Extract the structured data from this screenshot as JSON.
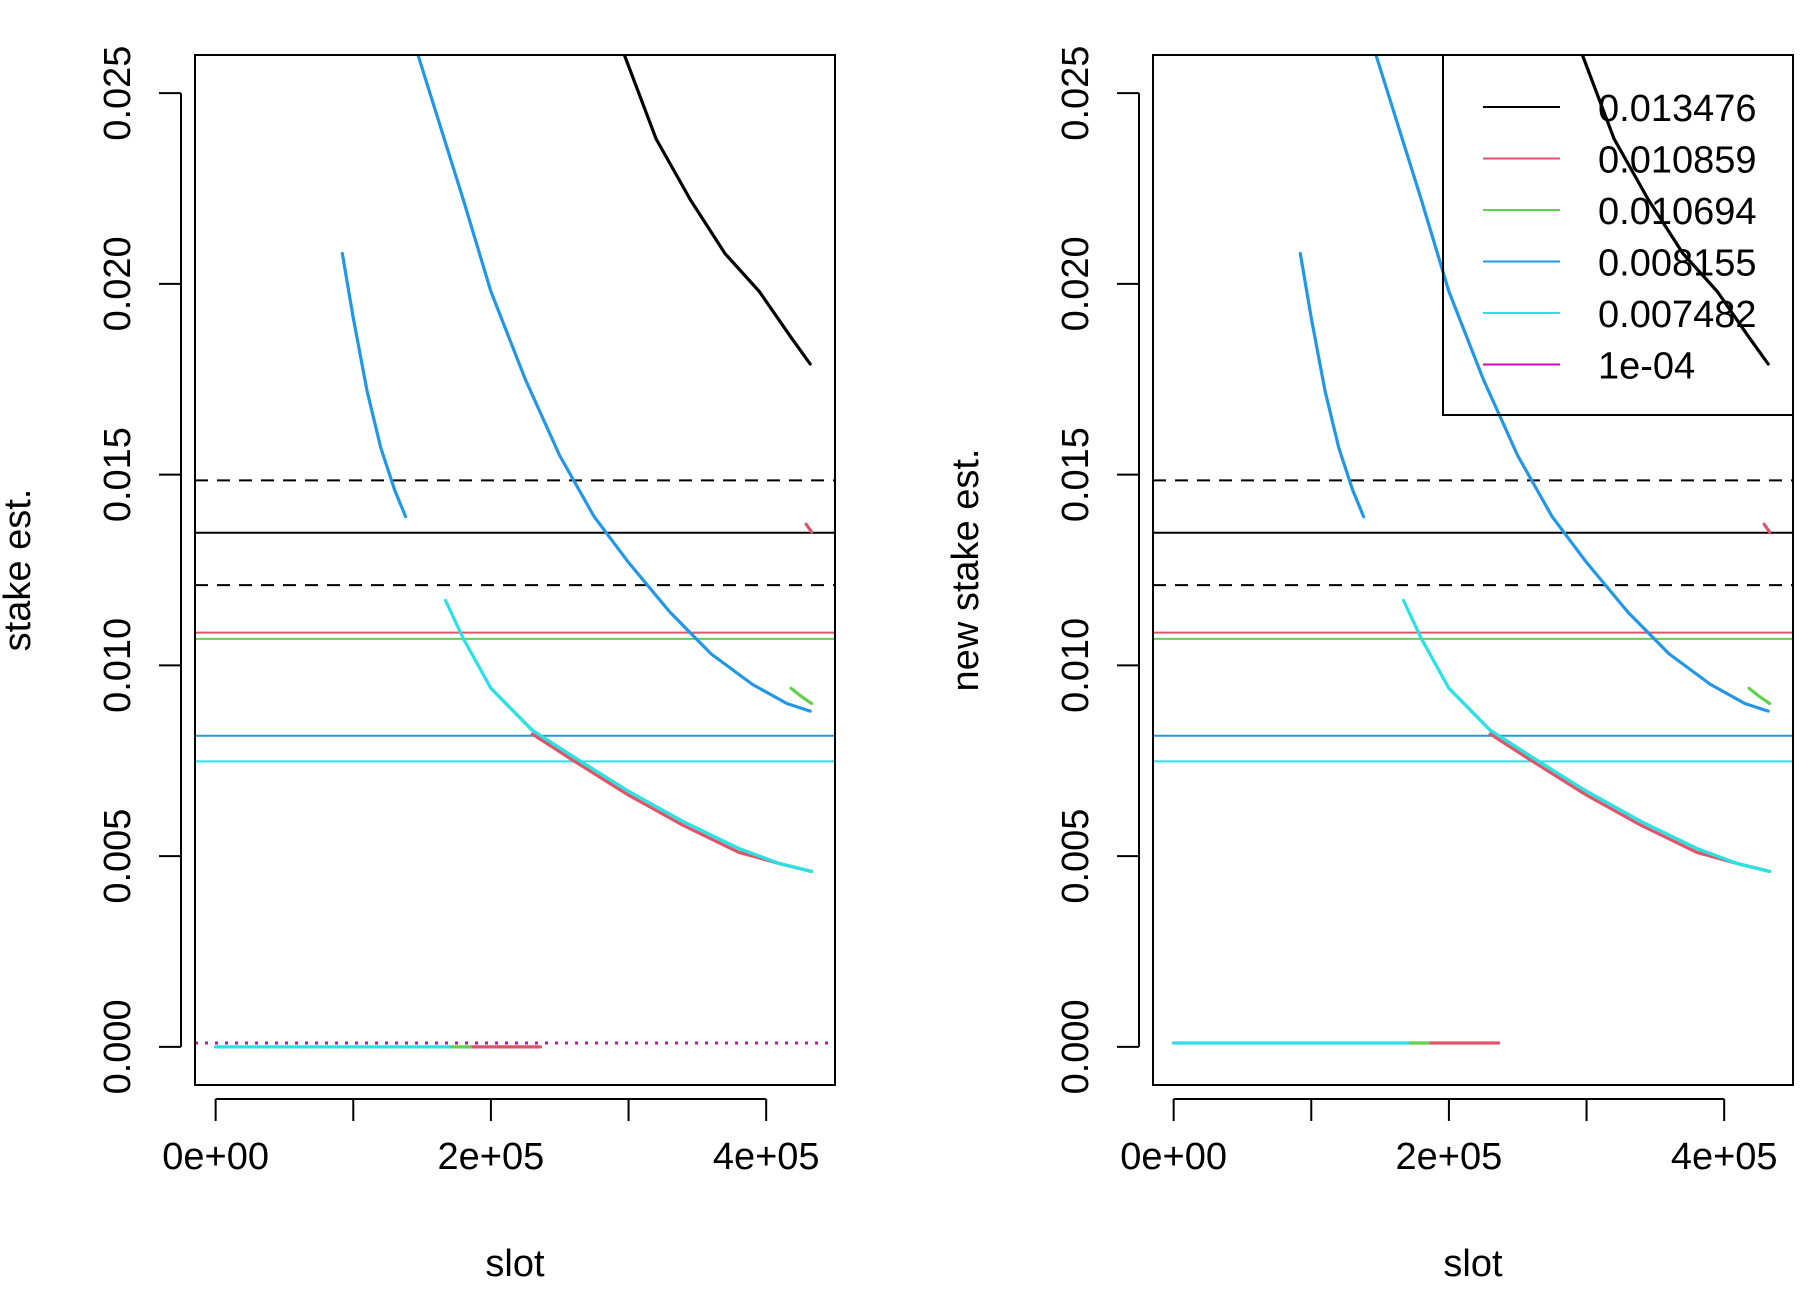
{
  "colors": {
    "black": "#000000",
    "red": "#df536b",
    "green": "#61d04f",
    "blue": "#2297e6",
    "cyan": "#28e2e5",
    "magenta": "#cd0bbc"
  },
  "chart_data": [
    {
      "type": "line",
      "xlabel": "slot",
      "ylabel": "stake est.",
      "xlim": [
        -15000,
        450000
      ],
      "ylim": [
        -0.001,
        0.026
      ],
      "xticks": [
        0,
        100000,
        200000,
        300000,
        400000
      ],
      "xtick_labels": [
        "0e+00",
        "",
        "2e+05",
        "",
        "4e+05"
      ],
      "yticks": [
        0,
        0.005,
        0.01,
        0.015,
        0.02,
        0.025
      ],
      "ytick_labels": [
        "0.000",
        "0.005",
        "0.010",
        "0.015",
        "0.020",
        "0.025"
      ],
      "grid": false,
      "hlines": [
        {
          "y": 0.014849,
          "color": "#000000",
          "dash": "dashed"
        },
        {
          "y": 0.013476,
          "color": "#000000",
          "dash": "solid"
        },
        {
          "y": 0.012103,
          "color": "#000000",
          "dash": "dashed"
        },
        {
          "y": 0.010859,
          "color": "#df536b",
          "dash": "solid"
        },
        {
          "y": 0.010694,
          "color": "#61d04f",
          "dash": "solid"
        },
        {
          "y": 0.008155,
          "color": "#2297e6",
          "dash": "solid"
        },
        {
          "y": 0.007482,
          "color": "#28e2e5",
          "dash": "solid"
        },
        {
          "y": 0.0001,
          "color": "#cd0bbc",
          "dash": "dotted"
        }
      ],
      "series": [
        {
          "color": "#000000",
          "x": [
            297000,
            320000,
            345000,
            370000,
            395000,
            418000,
            432000
          ],
          "y": [
            0.026,
            0.0238,
            0.0222,
            0.0208,
            0.0198,
            0.0186,
            0.0179
          ]
        },
        {
          "color": "#2297e6",
          "x": [
            147000,
            160000,
            180000,
            200000,
            225000,
            250000,
            275000,
            300000,
            330000,
            360000,
            390000,
            415000,
            432000
          ],
          "y": [
            0.026,
            0.0245,
            0.0222,
            0.0198,
            0.0175,
            0.0155,
            0.0139,
            0.0127,
            0.0114,
            0.0103,
            0.0095,
            0.009,
            0.0088
          ]
        },
        {
          "color": "#2297e6",
          "x": [
            92000,
            100000,
            110000,
            120000,
            130000,
            138000
          ],
          "y": [
            0.0208,
            0.0191,
            0.0172,
            0.0157,
            0.0146,
            0.0139
          ]
        },
        {
          "color": "#61d04f",
          "x": [
            418000,
            425000,
            433000
          ],
          "y": [
            0.0094,
            0.0092,
            0.009
          ]
        },
        {
          "color": "#df536b",
          "x": [
            429000,
            433000
          ],
          "y": [
            0.0137,
            0.0135
          ]
        },
        {
          "color": "#df536b",
          "x": [
            230000,
            260000,
            300000,
            340000,
            380000,
            410000,
            433000
          ],
          "y": [
            0.0082,
            0.0075,
            0.0066,
            0.0058,
            0.0051,
            0.0048,
            0.0046
          ]
        },
        {
          "color": "#61d04f",
          "x": [
            200000,
            230000,
            260000,
            300000,
            340000,
            380000,
            410000,
            433000
          ],
          "y": [
            0.0094,
            0.0083,
            0.0076,
            0.0067,
            0.0059,
            0.0052,
            0.0048,
            0.0046
          ]
        },
        {
          "color": "#28e2e5",
          "x": [
            167000,
            180000,
            200000,
            230000,
            260000,
            300000,
            340000,
            380000,
            410000,
            433000
          ],
          "y": [
            0.0117,
            0.0107,
            0.0094,
            0.0083,
            0.0076,
            0.0067,
            0.0059,
            0.0052,
            0.0048,
            0.0046
          ]
        },
        {
          "color": "#df536b",
          "x": [
            185000,
            236000
          ],
          "y": [
            0.0,
            0.0
          ]
        },
        {
          "color": "#61d04f",
          "x": [
            170000,
            185000
          ],
          "y": [
            0.0,
            0.0
          ]
        },
        {
          "color": "#28e2e5",
          "x": [
            0,
            170000
          ],
          "y": [
            0.0,
            0.0
          ]
        }
      ]
    },
    {
      "type": "line",
      "xlabel": "slot",
      "ylabel": "new stake est.",
      "xlim": [
        -15000,
        450000
      ],
      "ylim": [
        -0.001,
        0.026
      ],
      "xticks": [
        0,
        100000,
        200000,
        300000,
        400000
      ],
      "xtick_labels": [
        "0e+00",
        "",
        "2e+05",
        "",
        "4e+05"
      ],
      "yticks": [
        0,
        0.005,
        0.01,
        0.015,
        0.02,
        0.025
      ],
      "ytick_labels": [
        "0.000",
        "0.005",
        "0.010",
        "0.015",
        "0.020",
        "0.025"
      ],
      "grid": false,
      "legend": {
        "position": "top-right",
        "entries": [
          {
            "label": "0.013476",
            "color": "#000000"
          },
          {
            "label": "0.010859",
            "color": "#df536b"
          },
          {
            "label": "0.010694",
            "color": "#61d04f"
          },
          {
            "label": "0.008155",
            "color": "#2297e6"
          },
          {
            "label": "0.007482",
            "color": "#28e2e5"
          },
          {
            "label": "1e-04",
            "color": "#cd0bbc"
          }
        ]
      },
      "hlines": [
        {
          "y": 0.014849,
          "color": "#000000",
          "dash": "dashed"
        },
        {
          "y": 0.013476,
          "color": "#000000",
          "dash": "solid"
        },
        {
          "y": 0.012103,
          "color": "#000000",
          "dash": "dashed"
        },
        {
          "y": 0.010859,
          "color": "#df536b",
          "dash": "solid"
        },
        {
          "y": 0.010694,
          "color": "#61d04f",
          "dash": "solid"
        },
        {
          "y": 0.008155,
          "color": "#2297e6",
          "dash": "solid"
        },
        {
          "y": 0.007482,
          "color": "#28e2e5",
          "dash": "solid"
        }
      ],
      "series": [
        {
          "color": "#000000",
          "x": [
            297000,
            320000,
            345000,
            370000,
            395000,
            418000,
            432000
          ],
          "y": [
            0.026,
            0.0238,
            0.0222,
            0.0208,
            0.0198,
            0.0186,
            0.0179
          ]
        },
        {
          "color": "#2297e6",
          "x": [
            147000,
            160000,
            180000,
            200000,
            225000,
            250000,
            275000,
            300000,
            330000,
            360000,
            390000,
            415000,
            432000
          ],
          "y": [
            0.026,
            0.0245,
            0.0222,
            0.0198,
            0.0175,
            0.0155,
            0.0139,
            0.0127,
            0.0114,
            0.0103,
            0.0095,
            0.009,
            0.0088
          ]
        },
        {
          "color": "#2297e6",
          "x": [
            92000,
            100000,
            110000,
            120000,
            130000,
            138000
          ],
          "y": [
            0.0208,
            0.0191,
            0.0172,
            0.0157,
            0.0146,
            0.0139
          ]
        },
        {
          "color": "#61d04f",
          "x": [
            418000,
            425000,
            433000
          ],
          "y": [
            0.0094,
            0.0092,
            0.009
          ]
        },
        {
          "color": "#df536b",
          "x": [
            429000,
            433000
          ],
          "y": [
            0.0137,
            0.0135
          ]
        },
        {
          "color": "#df536b",
          "x": [
            230000,
            260000,
            300000,
            340000,
            380000,
            410000,
            433000
          ],
          "y": [
            0.0082,
            0.0075,
            0.0066,
            0.0058,
            0.0051,
            0.0048,
            0.0046
          ]
        },
        {
          "color": "#61d04f",
          "x": [
            200000,
            230000,
            260000,
            300000,
            340000,
            380000,
            410000,
            433000
          ],
          "y": [
            0.0094,
            0.0083,
            0.0076,
            0.0067,
            0.0059,
            0.0052,
            0.0048,
            0.0046
          ]
        },
        {
          "color": "#28e2e5",
          "x": [
            167000,
            180000,
            200000,
            230000,
            260000,
            300000,
            340000,
            380000,
            410000,
            433000
          ],
          "y": [
            0.0117,
            0.0107,
            0.0094,
            0.0083,
            0.0076,
            0.0067,
            0.0059,
            0.0052,
            0.0048,
            0.0046
          ]
        },
        {
          "color": "#df536b",
          "x": [
            185000,
            236000
          ],
          "y": [
            0.0001,
            0.0001
          ]
        },
        {
          "color": "#61d04f",
          "x": [
            170000,
            185000
          ],
          "y": [
            0.0001,
            0.0001
          ]
        },
        {
          "color": "#28e2e5",
          "x": [
            0,
            170000
          ],
          "y": [
            0.0001,
            0.0001
          ]
        }
      ]
    }
  ]
}
